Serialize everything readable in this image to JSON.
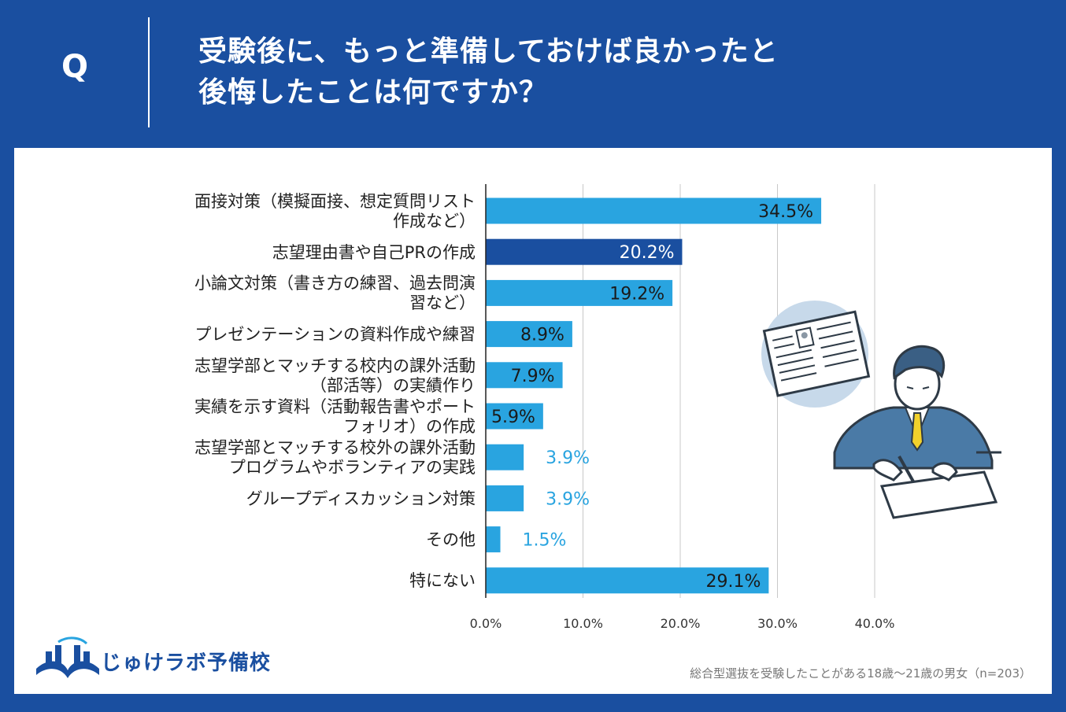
{
  "header": {
    "q_letter": "Q",
    "question_lines": [
      "受験後に、もっと準備しておけば良かったと",
      "後悔したことは何ですか？"
    ]
  },
  "colors": {
    "background": "#1a4fa0",
    "bar": "#29a4e0",
    "bar_highlight": "#1a4fa0",
    "grid": "#c8c8c8",
    "value_outside": "#29a4e0"
  },
  "chart_data": {
    "type": "bar",
    "orientation": "horizontal",
    "categories": [
      [
        "面接対策（模擬面接、想定質問リスト",
        "作成など）"
      ],
      [
        "志望理由書や自己PRの作成"
      ],
      [
        "小論文対策（書き方の練習、過去問演",
        "習など）"
      ],
      [
        "プレゼンテーションの資料作成や練習"
      ],
      [
        "志望学部とマッチする校内の課外活動",
        "（部活等）の実績作り"
      ],
      [
        "実績を示す資料（活動報告書やポート",
        "フォリオ）の作成"
      ],
      [
        "志望学部とマッチする校外の課外活動",
        "プログラムやボランティアの実践"
      ],
      [
        "グループディスカッション対策"
      ],
      [
        "その他"
      ],
      [
        "特にない"
      ]
    ],
    "values": [
      34.5,
      20.2,
      19.2,
      8.9,
      7.9,
      5.9,
      3.9,
      3.9,
      1.5,
      29.1
    ],
    "value_labels": [
      "34.5%",
      "20.2%",
      "19.2%",
      "8.9%",
      "7.9%",
      "5.9%",
      "3.9%",
      "3.9%",
      "1.5%",
      "29.1%"
    ],
    "highlight_index": 1,
    "xlim": [
      0,
      40
    ],
    "ticks": [
      0,
      10,
      20,
      30,
      40
    ],
    "tick_labels": [
      "0.0%",
      "10.0%",
      "20.0%",
      "30.0%",
      "40.0%"
    ],
    "grid": true,
    "title": "",
    "xlabel": "",
    "ylabel": ""
  },
  "footer": {
    "logo_text": "じゅけラボ予備校",
    "note": "総合型選抜を受験したことがある18歳～21歳の男女（n=203）"
  }
}
